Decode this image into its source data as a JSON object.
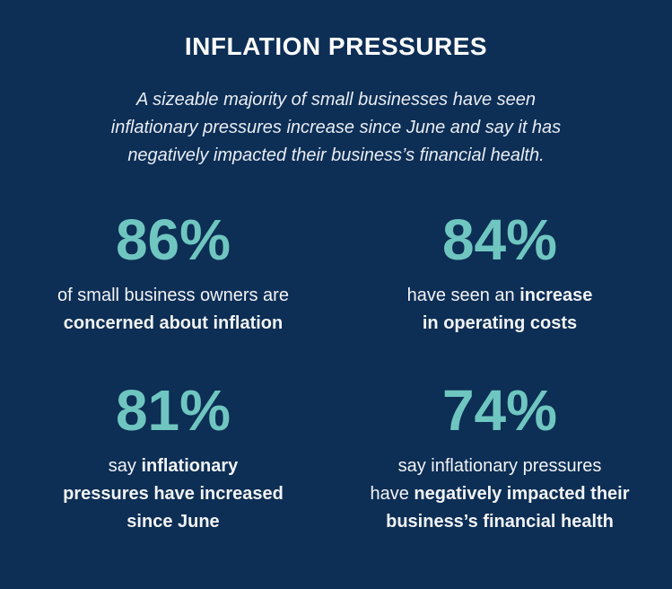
{
  "header": {
    "title": "INFLATION PRESSURES",
    "subtitle": [
      "A sizeable majority of small businesses have seen",
      "inflationary pressures increase since June and say it has",
      "negatively impacted their business’s financial health."
    ]
  },
  "stats": [
    {
      "value": "86%",
      "lines": [
        [
          {
            "text": "of small business owners are",
            "bold": false
          }
        ],
        [
          {
            "text": "concerned about inflation",
            "bold": true
          }
        ]
      ]
    },
    {
      "value": "84%",
      "lines": [
        [
          {
            "text": "have seen an ",
            "bold": false
          },
          {
            "text": "increase",
            "bold": true
          }
        ],
        [
          {
            "text": "in operating costs",
            "bold": true
          }
        ]
      ]
    },
    {
      "value": "81%",
      "lines": [
        [
          {
            "text": "say ",
            "bold": false
          },
          {
            "text": "inflationary",
            "bold": true
          }
        ],
        [
          {
            "text": "pressures have increased",
            "bold": true
          }
        ],
        [
          {
            "text": "since June",
            "bold": true
          }
        ]
      ]
    },
    {
      "value": "74%",
      "lines": [
        [
          {
            "text": "say inflationary pressures",
            "bold": false
          }
        ],
        [
          {
            "text": "have ",
            "bold": false
          },
          {
            "text": "negatively impacted their",
            "bold": true
          }
        ],
        [
          {
            "text": "business’s financial health",
            "bold": true
          }
        ]
      ]
    }
  ]
}
